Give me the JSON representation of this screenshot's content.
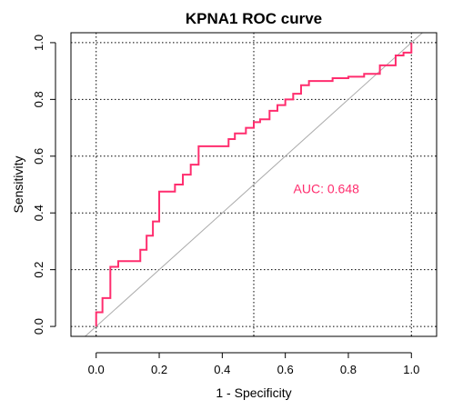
{
  "chart_data": {
    "type": "line",
    "title": "KPNA1 ROC curve",
    "xlabel": "1 - Specificity",
    "ylabel": "Sensitivity",
    "xlim": [
      -0.08,
      1.08
    ],
    "ylim": [
      -0.035,
      1.035
    ],
    "x_ticks": [
      "0.0",
      "0.2",
      "0.4",
      "0.6",
      "0.8",
      "1.0"
    ],
    "x_tick_values": [
      0,
      0.2,
      0.4,
      0.6,
      0.8,
      1.0
    ],
    "y_ticks": [
      "0.0",
      "0.2",
      "0.4",
      "0.6",
      "0.8",
      "1.0"
    ],
    "y_tick_values": [
      0,
      0.2,
      0.4,
      0.6,
      0.8,
      1.0
    ],
    "grid": true,
    "grid_style": "dotted",
    "grid_x": [
      0,
      0.5,
      1
    ],
    "grid_y": [
      0,
      0.2,
      0.4,
      0.6,
      0.8,
      1
    ],
    "diagonal_reference": true,
    "diagonal_color": "#aaaaaa",
    "annotation": "AUC: 0.648",
    "annotation_position": {
      "x": 0.73,
      "y": 0.47
    },
    "series": [
      {
        "color": "#ff2d6e",
        "points": [
          [
            0.0,
            0.0
          ],
          [
            0.0,
            0.05
          ],
          [
            0.02,
            0.05
          ],
          [
            0.02,
            0.1
          ],
          [
            0.045,
            0.1
          ],
          [
            0.045,
            0.21
          ],
          [
            0.07,
            0.21
          ],
          [
            0.07,
            0.23
          ],
          [
            0.14,
            0.23
          ],
          [
            0.14,
            0.27
          ],
          [
            0.16,
            0.27
          ],
          [
            0.16,
            0.32
          ],
          [
            0.18,
            0.32
          ],
          [
            0.18,
            0.37
          ],
          [
            0.2,
            0.37
          ],
          [
            0.2,
            0.475
          ],
          [
            0.25,
            0.475
          ],
          [
            0.25,
            0.5
          ],
          [
            0.275,
            0.5
          ],
          [
            0.275,
            0.535
          ],
          [
            0.3,
            0.535
          ],
          [
            0.3,
            0.57
          ],
          [
            0.325,
            0.57
          ],
          [
            0.325,
            0.635
          ],
          [
            0.42,
            0.635
          ],
          [
            0.42,
            0.66
          ],
          [
            0.44,
            0.66
          ],
          [
            0.44,
            0.68
          ],
          [
            0.475,
            0.68
          ],
          [
            0.475,
            0.7
          ],
          [
            0.5,
            0.7
          ],
          [
            0.5,
            0.72
          ],
          [
            0.52,
            0.72
          ],
          [
            0.52,
            0.73
          ],
          [
            0.55,
            0.73
          ],
          [
            0.55,
            0.76
          ],
          [
            0.575,
            0.76
          ],
          [
            0.575,
            0.78
          ],
          [
            0.6,
            0.78
          ],
          [
            0.6,
            0.8
          ],
          [
            0.625,
            0.8
          ],
          [
            0.625,
            0.82
          ],
          [
            0.65,
            0.82
          ],
          [
            0.65,
            0.85
          ],
          [
            0.675,
            0.85
          ],
          [
            0.675,
            0.865
          ],
          [
            0.75,
            0.865
          ],
          [
            0.75,
            0.875
          ],
          [
            0.8,
            0.875
          ],
          [
            0.8,
            0.88
          ],
          [
            0.85,
            0.88
          ],
          [
            0.85,
            0.89
          ],
          [
            0.9,
            0.89
          ],
          [
            0.9,
            0.92
          ],
          [
            0.95,
            0.92
          ],
          [
            0.95,
            0.955
          ],
          [
            0.975,
            0.955
          ],
          [
            0.975,
            0.965
          ],
          [
            1.0,
            0.965
          ],
          [
            1.0,
            1.0
          ]
        ]
      }
    ]
  }
}
